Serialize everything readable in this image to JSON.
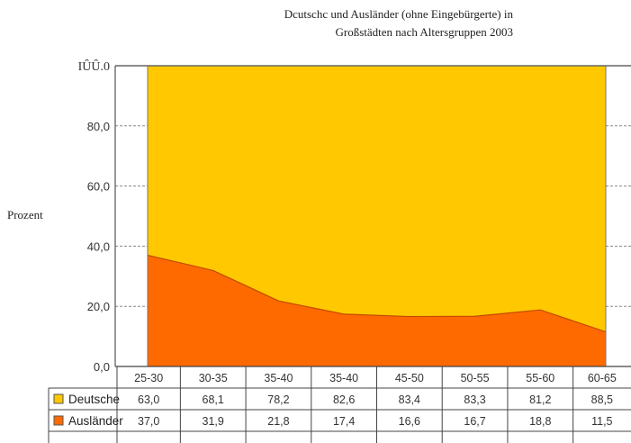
{
  "title_line1": "Dcutschc und Ausländer (ohne Eingebürgerte) in",
  "title_line2": "Großstädten nach Altersgruppen 2003",
  "colors": {
    "deutsche": "#FFC800",
    "auslaender": "#FF6A00",
    "grid": "#888888",
    "axis": "#555555"
  },
  "chart_data": {
    "type": "area",
    "title": "Dcutschc und Ausländer (ohne Eingebürgerte) in Großstädten nach Altersgruppen 2003",
    "ylabel": "Prozent",
    "xlabel": "",
    "ylim": [
      0,
      100
    ],
    "y_ticks": [
      "0,0",
      "20,0",
      "40,0",
      "60,0",
      "80,0",
      "IÛÛ.0"
    ],
    "stacked": true,
    "grid": "dashed horizontal",
    "legend": "table below chart",
    "categories": [
      "25-30",
      "30-35",
      "35-40",
      "35-40",
      "45-50",
      "50-55",
      "55-60",
      "60-65"
    ],
    "series": [
      {
        "name": "Deutsche",
        "values": [
          63.0,
          68.1,
          78.2,
          82.6,
          83.4,
          83.3,
          81.2,
          88.5
        ],
        "labels": [
          "63,0",
          "68,1",
          "78,2",
          "82,6",
          "83,4",
          "83,3",
          "81,2",
          "88,5"
        ]
      },
      {
        "name": "Ausländer",
        "values": [
          37.0,
          31.9,
          21.8,
          17.4,
          16.6,
          16.7,
          18.8,
          11.5
        ],
        "labels": [
          "37,0",
          "31,9",
          "21,8",
          "17,4",
          "16,6",
          "16,7",
          "18,8",
          "11,5"
        ]
      }
    ]
  }
}
